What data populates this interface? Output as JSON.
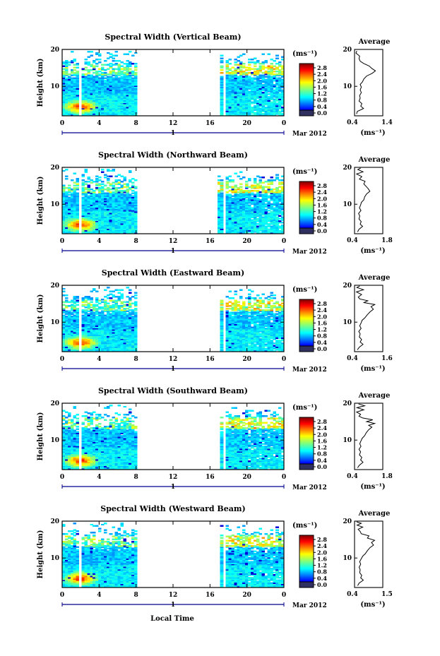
{
  "figure": {
    "x_axis_label": "Local Time",
    "date_label": "Mar 2012",
    "day_label": "1",
    "avg_title": "Average",
    "unit_label": "(ms⁻¹)"
  },
  "chart_data": [
    {
      "type": "heatmap",
      "title": "Spectral Width (Vertical Beam)",
      "ylabel": "Height (km)",
      "xlabel": "Local Time",
      "x_ticks": [
        "0",
        "4",
        "8",
        "12",
        "16",
        "20",
        "0"
      ],
      "y_ticks": [
        "10",
        "20"
      ],
      "xlim": [
        0,
        24
      ],
      "ylim": [
        2,
        20
      ],
      "colorbar_ticks": [
        "0.0",
        "0.4",
        "0.8",
        "1.2",
        "1.6",
        "2.0",
        "2.4",
        "2.8"
      ],
      "colorbar_range": [
        0,
        2.8
      ],
      "data_gaps": [
        [
          1.7,
          2.0
        ],
        [
          5.9,
          6.1
        ],
        [
          8.0,
          16.7
        ],
        [
          16.95,
          17.05
        ],
        [
          17.35,
          17.75
        ],
        [
          19.7,
          19.9
        ]
      ],
      "hot_spot": {
        "time": 2.0,
        "height": 4.5
      }
    },
    {
      "type": "heatmap",
      "title": "Spectral Width (Northward Beam)",
      "ylabel": "Height (km)",
      "xlabel": "Local Time",
      "x_ticks": [
        "0",
        "4",
        "8",
        "12",
        "16",
        "20",
        "0"
      ],
      "y_ticks": [
        "10",
        "20"
      ],
      "xlim": [
        0,
        24
      ],
      "ylim": [
        2,
        20
      ],
      "colorbar_ticks": [
        "0.0",
        "0.4",
        "0.8",
        "1.2",
        "1.6",
        "2.0",
        "2.4",
        "2.8"
      ],
      "colorbar_range": [
        0,
        2.8
      ],
      "data_gaps": [
        [
          1.7,
          2.0
        ],
        [
          5.9,
          6.1
        ],
        [
          8.0,
          16.9
        ],
        [
          17.35,
          17.75
        ],
        [
          19.7,
          19.9
        ]
      ],
      "hot_spot": {
        "time": 2.0,
        "height": 4.5
      }
    },
    {
      "type": "heatmap",
      "title": "Spectral Width (Eastward Beam)",
      "ylabel": "Height (km)",
      "xlabel": "Local Time",
      "x_ticks": [
        "0",
        "4",
        "8",
        "12",
        "16",
        "20",
        "0"
      ],
      "y_ticks": [
        "10",
        "20"
      ],
      "xlim": [
        0,
        24
      ],
      "ylim": [
        2,
        20
      ],
      "colorbar_ticks": [
        "0.0",
        "0.4",
        "0.8",
        "1.2",
        "1.6",
        "2.0",
        "2.4",
        "2.8"
      ],
      "colorbar_range": [
        0,
        2.8
      ],
      "data_gaps": [
        [
          1.7,
          2.0
        ],
        [
          5.9,
          6.1
        ],
        [
          8.0,
          16.7
        ],
        [
          16.95,
          17.05
        ],
        [
          17.35,
          17.75
        ],
        [
          19.7,
          19.9
        ]
      ],
      "hot_spot": {
        "time": 2.0,
        "height": 4.5
      }
    },
    {
      "type": "heatmap",
      "title": "Spectral Width (Southward Beam)",
      "ylabel": "Height (km)",
      "xlabel": "Local Time",
      "x_ticks": [
        "0",
        "4",
        "8",
        "12",
        "16",
        "20",
        "0"
      ],
      "y_ticks": [
        "10",
        "20"
      ],
      "xlim": [
        0,
        24
      ],
      "ylim": [
        2,
        20
      ],
      "colorbar_ticks": [
        "0.0",
        "0.4",
        "0.8",
        "1.2",
        "1.6",
        "2.0",
        "2.4",
        "2.8"
      ],
      "colorbar_range": [
        0,
        2.8
      ],
      "data_gaps": [
        [
          1.7,
          2.0
        ],
        [
          5.9,
          6.1
        ],
        [
          8.0,
          16.7
        ],
        [
          16.95,
          17.05
        ],
        [
          17.35,
          17.75
        ],
        [
          19.7,
          19.9
        ]
      ],
      "hot_spot": {
        "time": 2.0,
        "height": 4.5
      }
    },
    {
      "type": "heatmap",
      "title": "Spectral Width (Westward Beam)",
      "ylabel": "Height (km)",
      "xlabel": "Local Time",
      "x_ticks": [
        "0",
        "4",
        "8",
        "12",
        "16",
        "20",
        "0"
      ],
      "y_ticks": [
        "10",
        "20"
      ],
      "xlim": [
        0,
        24
      ],
      "ylim": [
        2,
        20
      ],
      "colorbar_ticks": [
        "0.0",
        "0.4",
        "0.8",
        "1.2",
        "1.6",
        "2.0",
        "2.4",
        "2.8"
      ],
      "colorbar_range": [
        0,
        2.8
      ],
      "data_gaps": [
        [
          1.7,
          2.0
        ],
        [
          5.9,
          6.1
        ],
        [
          8.0,
          16.7
        ],
        [
          16.95,
          17.05
        ],
        [
          17.35,
          17.75
        ],
        [
          19.7,
          19.9
        ]
      ],
      "hot_spot": {
        "time": 2.0,
        "height": 4.5
      }
    },
    {
      "type": "line",
      "title": "Average",
      "xlabel": "(ms⁻¹)",
      "x_ticks": [
        "0.4",
        "1.4"
      ],
      "y_ticks": [
        "10",
        "20"
      ],
      "xlim": [
        0.4,
        1.4
      ],
      "ylim": [
        2,
        20
      ],
      "profile": [
        [
          2.5,
          0.47
        ],
        [
          3.2,
          0.5
        ],
        [
          4.0,
          0.72
        ],
        [
          4.6,
          0.62
        ],
        [
          5.3,
          0.66
        ],
        [
          6.0,
          0.56
        ],
        [
          6.8,
          0.6
        ],
        [
          7.5,
          0.58
        ],
        [
          8.3,
          0.64
        ],
        [
          9.0,
          0.6
        ],
        [
          9.8,
          0.64
        ],
        [
          10.5,
          0.6
        ],
        [
          11.2,
          0.68
        ],
        [
          12.0,
          0.73
        ],
        [
          12.8,
          0.83
        ],
        [
          13.5,
          1.02
        ],
        [
          14.2,
          1.14
        ],
        [
          14.8,
          1.02
        ],
        [
          15.5,
          0.92
        ],
        [
          16.2,
          0.72
        ],
        [
          16.8,
          0.6
        ],
        [
          17.5,
          0.56
        ],
        [
          18.2,
          0.58
        ],
        [
          19.0,
          0.45
        ],
        [
          19.6,
          0.48
        ]
      ]
    },
    {
      "type": "line",
      "title": "Average",
      "xlabel": "(ms⁻¹)",
      "x_ticks": [
        "0.4",
        "1.8"
      ],
      "y_ticks": [
        "10",
        "20"
      ],
      "xlim": [
        0.4,
        1.8
      ],
      "ylim": [
        2,
        20
      ],
      "profile": [
        [
          2.5,
          0.55
        ],
        [
          3.2,
          0.62
        ],
        [
          4.0,
          0.8
        ],
        [
          4.6,
          0.68
        ],
        [
          5.3,
          0.73
        ],
        [
          6.0,
          0.62
        ],
        [
          6.8,
          0.66
        ],
        [
          7.5,
          0.6
        ],
        [
          8.3,
          0.72
        ],
        [
          9.0,
          0.64
        ],
        [
          9.8,
          0.7
        ],
        [
          10.5,
          0.74
        ],
        [
          11.2,
          0.86
        ],
        [
          12.0,
          0.9
        ],
        [
          12.8,
          1.0
        ],
        [
          13.5,
          1.16
        ],
        [
          14.2,
          1.08
        ],
        [
          14.8,
          0.98
        ],
        [
          15.5,
          0.86
        ],
        [
          16.2,
          0.92
        ],
        [
          16.8,
          0.64
        ],
        [
          17.5,
          0.76
        ],
        [
          18.2,
          0.5
        ],
        [
          18.8,
          0.82
        ],
        [
          19.4,
          0.56
        ],
        [
          19.8,
          0.7
        ]
      ]
    },
    {
      "type": "line",
      "title": "Average",
      "xlabel": "(ms⁻¹)",
      "x_ticks": [
        "0.4",
        "1.6"
      ],
      "y_ticks": [
        "10",
        "20"
      ],
      "xlim": [
        0.4,
        1.6
      ],
      "ylim": [
        2,
        20
      ],
      "profile": [
        [
          2.5,
          0.52
        ],
        [
          3.2,
          0.6
        ],
        [
          4.0,
          0.76
        ],
        [
          4.6,
          0.64
        ],
        [
          5.3,
          0.7
        ],
        [
          6.0,
          0.6
        ],
        [
          6.8,
          0.64
        ],
        [
          7.5,
          0.58
        ],
        [
          8.3,
          0.68
        ],
        [
          9.0,
          0.62
        ],
        [
          9.8,
          0.68
        ],
        [
          10.5,
          0.72
        ],
        [
          11.2,
          0.84
        ],
        [
          12.0,
          0.94
        ],
        [
          12.8,
          1.06
        ],
        [
          13.5,
          1.2
        ],
        [
          14.2,
          1.1
        ],
        [
          14.8,
          1.26
        ],
        [
          15.3,
          0.8
        ],
        [
          15.8,
          0.96
        ],
        [
          16.3,
          0.62
        ],
        [
          16.8,
          0.56
        ],
        [
          17.5,
          0.7
        ],
        [
          18.2,
          0.48
        ],
        [
          18.8,
          0.78
        ],
        [
          19.4,
          0.5
        ],
        [
          19.8,
          0.62
        ]
      ]
    },
    {
      "type": "line",
      "title": "Average",
      "xlabel": "(ms⁻¹)",
      "x_ticks": [
        "0.4",
        "1.8"
      ],
      "y_ticks": [
        "10",
        "20"
      ],
      "xlim": [
        0.4,
        1.8
      ],
      "ylim": [
        2,
        20
      ],
      "profile": [
        [
          2.5,
          0.55
        ],
        [
          3.2,
          0.64
        ],
        [
          4.0,
          0.82
        ],
        [
          4.6,
          0.7
        ],
        [
          5.3,
          0.76
        ],
        [
          6.0,
          0.64
        ],
        [
          6.8,
          0.7
        ],
        [
          7.5,
          0.62
        ],
        [
          8.3,
          0.72
        ],
        [
          9.0,
          0.66
        ],
        [
          9.8,
          0.72
        ],
        [
          10.5,
          0.78
        ],
        [
          11.2,
          0.9
        ],
        [
          12.0,
          0.98
        ],
        [
          12.8,
          1.1
        ],
        [
          13.5,
          1.26
        ],
        [
          14.0,
          1.1
        ],
        [
          14.5,
          1.4
        ],
        [
          15.0,
          1.0
        ],
        [
          15.5,
          1.3
        ],
        [
          16.0,
          0.8
        ],
        [
          16.5,
          0.62
        ],
        [
          17.0,
          0.7
        ],
        [
          17.6,
          0.5
        ],
        [
          18.2,
          0.86
        ],
        [
          18.8,
          0.52
        ],
        [
          19.3,
          0.9
        ],
        [
          19.8,
          0.6
        ]
      ]
    },
    {
      "type": "line",
      "title": "Average",
      "xlabel": "(ms⁻¹)",
      "x_ticks": [
        "0.4",
        "1.5"
      ],
      "y_ticks": [
        "10",
        "20"
      ],
      "xlim": [
        0.4,
        1.5
      ],
      "ylim": [
        2,
        20
      ],
      "profile": [
        [
          2.5,
          0.52
        ],
        [
          3.2,
          0.58
        ],
        [
          4.0,
          0.74
        ],
        [
          4.6,
          0.64
        ],
        [
          5.3,
          0.68
        ],
        [
          6.0,
          0.6
        ],
        [
          6.8,
          0.62
        ],
        [
          7.5,
          0.58
        ],
        [
          8.3,
          0.64
        ],
        [
          9.0,
          0.6
        ],
        [
          9.8,
          0.66
        ],
        [
          10.5,
          0.72
        ],
        [
          11.2,
          0.82
        ],
        [
          12.0,
          0.9
        ],
        [
          12.8,
          1.0
        ],
        [
          13.5,
          1.14
        ],
        [
          14.2,
          1.06
        ],
        [
          14.8,
          1.18
        ],
        [
          15.4,
          0.9
        ],
        [
          16.0,
          0.96
        ],
        [
          16.6,
          0.66
        ],
        [
          17.2,
          0.62
        ],
        [
          17.8,
          0.54
        ],
        [
          18.4,
          0.72
        ],
        [
          18.9,
          0.5
        ],
        [
          19.4,
          0.66
        ],
        [
          19.8,
          0.48
        ]
      ]
    }
  ]
}
